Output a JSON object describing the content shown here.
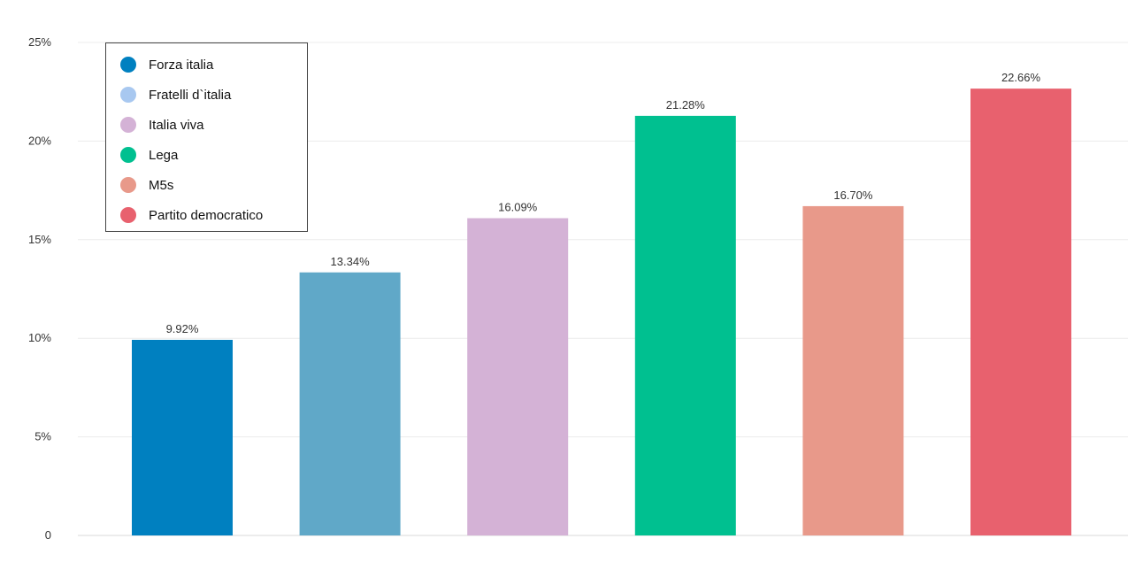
{
  "chart_data": {
    "type": "bar",
    "categories": [
      "Forza italia",
      "Fratelli d`italia",
      "Italia viva",
      "Lega",
      "M5s",
      "Partito democratico"
    ],
    "values": [
      9.92,
      13.34,
      16.09,
      21.28,
      16.7,
      22.66
    ],
    "value_labels": [
      "9.92%",
      "13.34%",
      "16.09%",
      "21.28%",
      "16.70%",
      "22.66%"
    ],
    "bar_colors": [
      "#0080c0",
      "#60a8c8",
      "#d4b2d6",
      "#00c090",
      "#e8998a",
      "#e8616e"
    ],
    "legend": [
      {
        "label": "Forza italia",
        "color": "#0080c0"
      },
      {
        "label": "Fratelli d`italia",
        "color": "#a8c8f0"
      },
      {
        "label": "Italia viva",
        "color": "#d4b2d6"
      },
      {
        "label": "Lega",
        "color": "#00c090"
      },
      {
        "label": "M5s",
        "color": "#e8998a"
      },
      {
        "label": "Partito democratico",
        "color": "#e8616e"
      }
    ],
    "legend_position": "top-left",
    "y_ticks": [
      0,
      5,
      10,
      15,
      20,
      25
    ],
    "y_tick_labels": [
      "0",
      "5%",
      "10%",
      "15%",
      "20%",
      "25%"
    ],
    "ylim": [
      0,
      25
    ],
    "grid": true,
    "title": "",
    "xlabel": "",
    "ylabel": ""
  }
}
